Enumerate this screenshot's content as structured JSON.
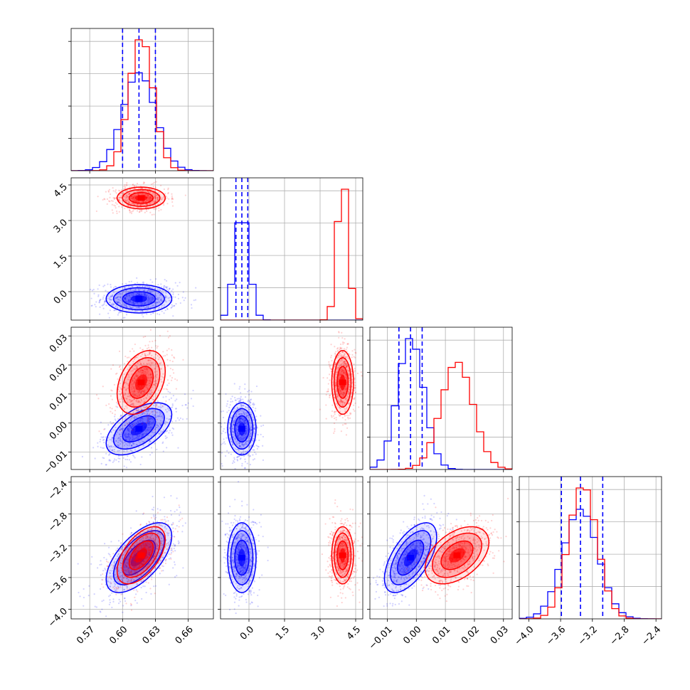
{
  "chart_data": {
    "type": "corner",
    "title": "",
    "grid": true,
    "colors": {
      "blue": "#0000ff",
      "red": "#ff0000"
    },
    "parameters": [
      {
        "ticks": [
          0.57,
          0.6,
          0.63,
          0.66
        ],
        "tick_labels": [
          "0.57",
          "0.60",
          "0.63",
          "0.66"
        ],
        "range": [
          0.553,
          0.683
        ]
      },
      {
        "ticks": [
          0.0,
          1.5,
          3.0,
          4.5
        ],
        "tick_labels": [
          "0.0",
          "1.5",
          "3.0",
          "4.5"
        ],
        "range": [
          -1.2,
          4.8
        ]
      },
      {
        "ticks": [
          -0.01,
          0.0,
          0.01,
          0.02,
          0.03
        ],
        "tick_labels": [
          "−0.01",
          "0.00",
          "0.01",
          "0.02",
          "0.03"
        ],
        "range": [
          -0.016,
          0.033
        ]
      },
      {
        "ticks": [
          -4.0,
          -3.6,
          -3.2,
          -2.8,
          -2.4
        ],
        "tick_labels": [
          "−4.0",
          "−3.6",
          "−3.2",
          "−2.8",
          "−2.4"
        ],
        "range": [
          -4.12,
          -2.33
        ]
      }
    ],
    "series": [
      {
        "color": "blue",
        "means": [
          0.615,
          -0.3,
          -0.002,
          -3.35
        ],
        "sigmas": [
          0.015,
          0.3,
          0.0045,
          0.22
        ],
        "correlations": {
          "0-2": 0.55,
          "0-3": 0.62,
          "2-3": 0.6,
          "0-1": 0.0,
          "1-2": 0.0,
          "1-3": 0.0
        },
        "quantiles": [
          [
            0.6,
            0.615,
            0.63
          ],
          [
            -0.55,
            -0.3,
            -0.05
          ],
          [
            -0.006,
            -0.002,
            0.002
          ],
          [
            -3.59,
            -3.35,
            -3.07
          ]
        ]
      },
      {
        "color": "red",
        "means": [
          0.617,
          3.95,
          0.014,
          -3.32
        ],
        "sigmas": [
          0.011,
          0.23,
          0.0055,
          0.18
        ],
        "correlations": {
          "0-2": 0.35,
          "0-3": 0.55,
          "2-3": 0.45,
          "0-1": 0.0,
          "1-2": 0.0,
          "1-3": 0.0
        }
      }
    ]
  }
}
